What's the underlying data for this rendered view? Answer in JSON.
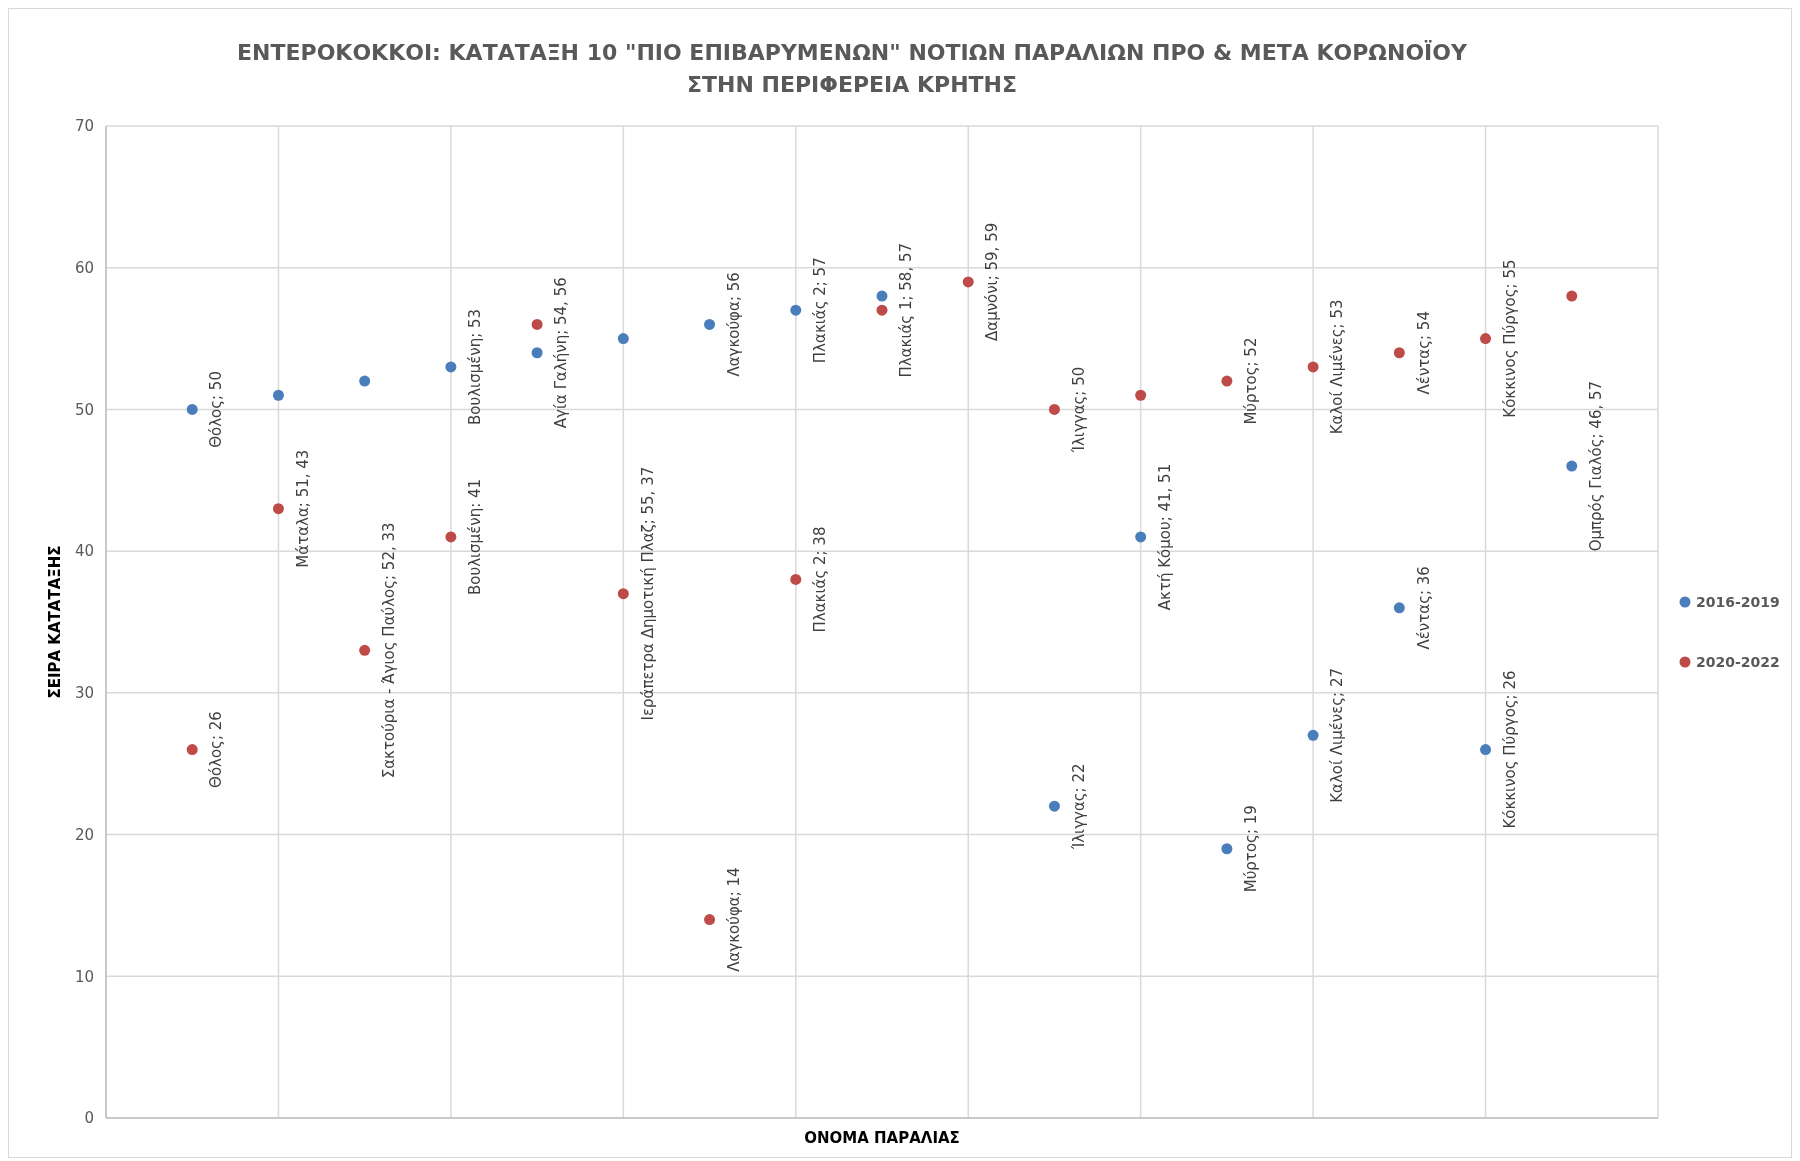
{
  "chart_data": {
    "type": "scatter",
    "title": "ΕΝΤΕΡΟΚΟΚΚΟΙ: ΚΑΤΑΤΑΞΗ 10 \"ΠΙΟ ΕΠΙΒΑΡΥΜΕΝΩΝ\" ΝΟΤΙΩΝ ΠΑΡΑΛΙΩΝ ΠΡΟ & ΜΕΤΑ ΚΟΡΩΝΟΪΟΥ ΣΤΗΝ ΠΕΡΙΦΕΡΕΙΑ ΚΡΗΤΗΣ",
    "xlabel": "ΟΝΟΜΑ ΠΑΡΑΛΙΑΣ",
    "ylabel": "ΣΕΙΡΑ ΚΑΤΑΤΑΞΗΣ",
    "categories": [
      null,
      null,
      null,
      null,
      null,
      null,
      null,
      null,
      null,
      null,
      null,
      null,
      null,
      null,
      null,
      null,
      null
    ],
    "series": [
      {
        "name": "2016-2019",
        "color": "#4a7ebb",
        "values": [
          50,
          51,
          52,
          53,
          54,
          55,
          56,
          57,
          58,
          null,
          22,
          41,
          19,
          27,
          36,
          26,
          46
        ],
        "value_labels": [
          "Θόλος; 50",
          null,
          null,
          "Βουλισμένη; 53",
          "Αγία Γαλήνη; 54, 56",
          null,
          "Λαγκούφα; 56",
          "Πλακιάς 2; 57",
          null,
          null,
          "Ίλιγγας; 22",
          "Ακτή Κόμου; 41, 51",
          "Μύρτος; 19",
          "Καλοί Λιμένες; 27",
          "Λέντας; 36",
          "Κόκκινος Πύργος; 26",
          "Ομπρός Γιαλός; 46, 57"
        ]
      },
      {
        "name": "2020-2022",
        "color": "#be4b48",
        "values": [
          26,
          43,
          33,
          41,
          56,
          37,
          14,
          38,
          57,
          59,
          50,
          51,
          52,
          53,
          54,
          55,
          58
        ],
        "value_labels": [
          "Θόλος; 26",
          "Μάταλα; 51, 43",
          "Σακτούρια - Άγιος Παύλος; 52, 33",
          "Βουλισμένη: 41",
          null,
          "Ιεράπετρα Δημοτική Πλαζ; 55, 37",
          "Λαγκούφα; 14",
          "Πλακιάς 2; 38",
          "Πλακιάς 1; 58, 57",
          "Δαμνόνι; 59, 59",
          "Ίλιγγας; 50",
          null,
          "Μύρτος; 52",
          "Καλοί Λιμένες; 53",
          "Λέντας; 54",
          "Κόκκινος Πύργος; 55",
          null
        ]
      }
    ],
    "ylim": [
      0,
      70
    ],
    "yticks": [
      0,
      10,
      20,
      30,
      40,
      50,
      60,
      70
    ],
    "grid": true,
    "legend": "right",
    "marker": "circle"
  }
}
